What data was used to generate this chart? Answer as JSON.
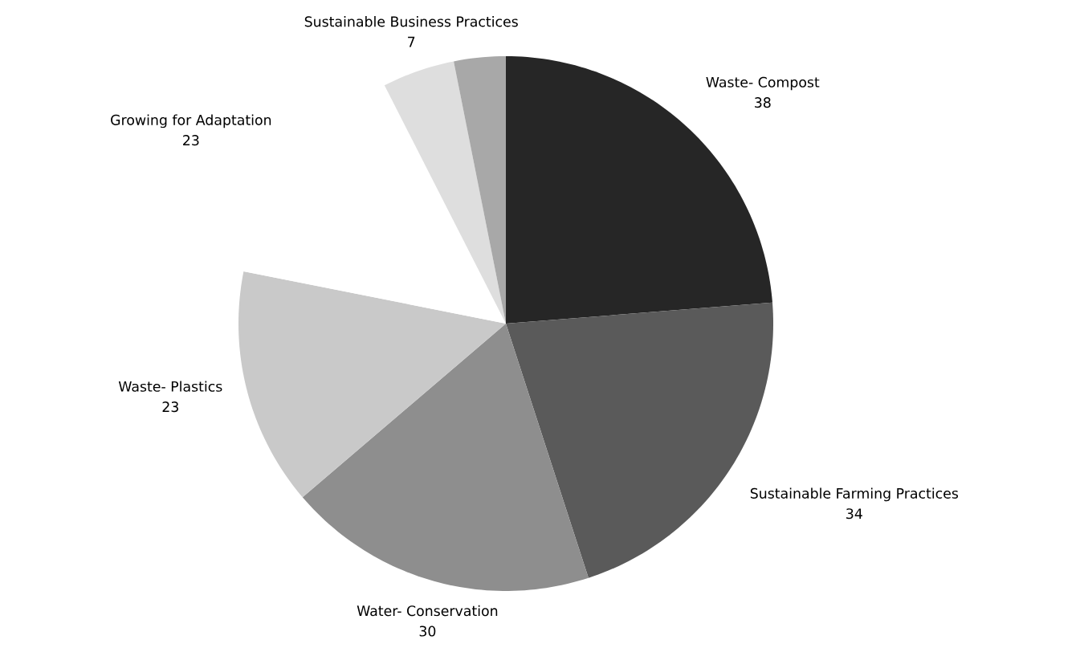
{
  "chart_data": {
    "type": "pie",
    "categories": [
      "Waste- Compost",
      "Sustainable Farming Practices",
      "Water- Conservation",
      "Waste- Plastics",
      "Growing for Adaptation",
      "Sustainable Business Practices",
      null
    ],
    "values": [
      38,
      34,
      30,
      23,
      23,
      7,
      5
    ],
    "value_labels": [
      "38",
      "34",
      "30",
      "23",
      "23",
      "7",
      null
    ],
    "colors": [
      "#262626",
      "#5a5a5a",
      "#8e8e8e",
      "#c9c9c9",
      "#ffffff",
      "#dedede",
      "#a8a8a8"
    ]
  }
}
